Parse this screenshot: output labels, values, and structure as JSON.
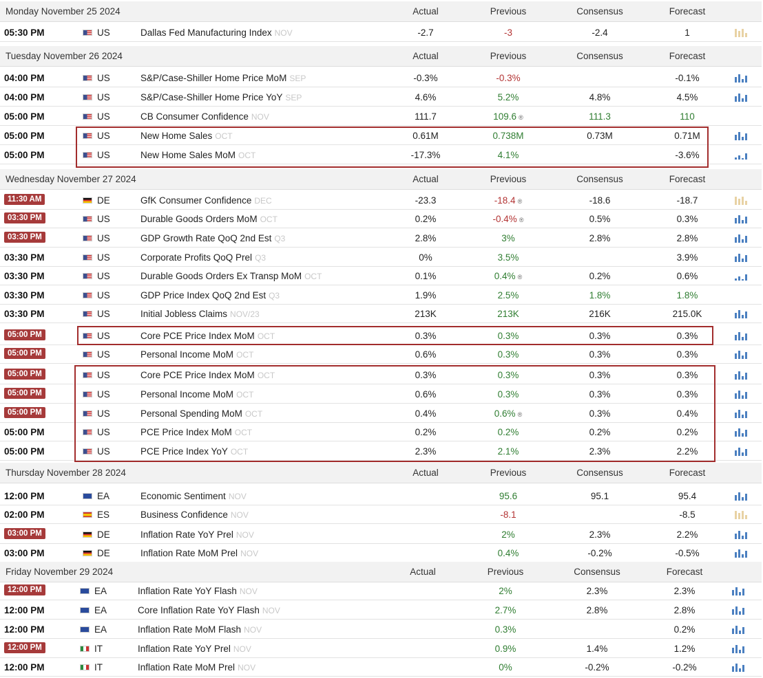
{
  "columns": {
    "actual": "Actual",
    "previous": "Previous",
    "consensus": "Consensus",
    "forecast": "Forecast"
  },
  "sections": [
    {
      "date": "Monday November 25 2024",
      "rows": [
        {
          "time": "05:30 PM",
          "badge": false,
          "flag": "US",
          "country": "US",
          "event": "Dallas Fed Manufacturing Index",
          "period": "NOV",
          "actual": "-2.7",
          "previous": "-3",
          "previous_color": "red",
          "consensus": "-2.4",
          "forecast": "1",
          "spark": "tan"
        }
      ]
    },
    {
      "date": "Tuesday November 26 2024",
      "rows": [
        {
          "time": "04:00 PM",
          "badge": false,
          "flag": "US",
          "country": "US",
          "event": "S&P/Case-Shiller Home Price MoM",
          "period": "SEP",
          "actual": "-0.3%",
          "previous": "-0.3%",
          "previous_color": "red",
          "consensus": "",
          "forecast": "-0.1%",
          "spark": "blue"
        },
        {
          "time": "04:00 PM",
          "badge": false,
          "flag": "US",
          "country": "US",
          "event": "S&P/Case-Shiller Home Price YoY",
          "period": "SEP",
          "actual": "4.6%",
          "previous": "5.2%",
          "previous_color": "green",
          "consensus": "4.8%",
          "forecast": "4.5%",
          "spark": "blue"
        },
        {
          "time": "05:00 PM",
          "badge": false,
          "flag": "US",
          "country": "US",
          "event": "CB Consumer Confidence",
          "period": "NOV",
          "actual": "111.7",
          "previous": "109.6",
          "previous_color": "green",
          "revised": true,
          "consensus": "111.3",
          "consensus_color": "green",
          "forecast": "110",
          "forecast_color": "green",
          "spark": "none"
        },
        {
          "time": "05:00 PM",
          "badge": false,
          "flag": "US",
          "country": "US",
          "event": "New Home Sales",
          "period": "OCT",
          "actual": "0.61M",
          "previous": "0.738M",
          "previous_color": "green",
          "consensus": "0.73M",
          "forecast": "0.71M",
          "spark": "blue"
        },
        {
          "time": "05:00 PM",
          "badge": false,
          "flag": "US",
          "country": "US",
          "event": "New Home Sales MoM",
          "period": "OCT",
          "actual": "-17.3%",
          "previous": "4.1%",
          "previous_color": "green",
          "consensus": "",
          "forecast": "-3.6%",
          "spark": "mixed"
        }
      ]
    },
    {
      "date": "Wednesday November 27 2024",
      "rows": [
        {
          "time": "11:30 AM",
          "badge": true,
          "flag": "DE",
          "country": "DE",
          "event": "GfK Consumer Confidence",
          "period": "DEC",
          "actual": "-23.3",
          "previous": "-18.4",
          "previous_color": "red",
          "revised": true,
          "consensus": "-18.6",
          "forecast": "-18.7",
          "spark": "tan"
        },
        {
          "time": "03:30 PM",
          "badge": true,
          "flag": "US",
          "country": "US",
          "event": "Durable Goods Orders MoM",
          "period": "OCT",
          "actual": "0.2%",
          "previous": "-0.4%",
          "previous_color": "red",
          "revised": true,
          "consensus": "0.5%",
          "forecast": "0.3%",
          "spark": "blue"
        },
        {
          "time": "03:30 PM",
          "badge": true,
          "flag": "US",
          "country": "US",
          "event": "GDP Growth Rate QoQ 2nd Est",
          "period": "Q3",
          "actual": "2.8%",
          "previous": "3%",
          "previous_color": "green",
          "consensus": "2.8%",
          "forecast": "2.8%",
          "spark": "blue"
        },
        {
          "time": "03:30 PM",
          "badge": false,
          "flag": "US",
          "country": "US",
          "event": "Corporate Profits QoQ Prel",
          "period": "Q3",
          "actual": "0%",
          "previous": "3.5%",
          "previous_color": "green",
          "consensus": "",
          "forecast": "3.9%",
          "spark": "blue"
        },
        {
          "time": "03:30 PM",
          "badge": false,
          "flag": "US",
          "country": "US",
          "event": "Durable Goods Orders Ex Transp MoM",
          "period": "OCT",
          "actual": "0.1%",
          "previous": "0.4%",
          "previous_color": "green",
          "revised": true,
          "consensus": "0.2%",
          "forecast": "0.6%",
          "spark": "mixed"
        },
        {
          "time": "03:30 PM",
          "badge": false,
          "flag": "US",
          "country": "US",
          "event": "GDP Price Index QoQ 2nd Est",
          "period": "Q3",
          "actual": "1.9%",
          "previous": "2.5%",
          "previous_color": "green",
          "consensus": "1.8%",
          "consensus_color": "green",
          "forecast": "1.8%",
          "forecast_color": "green",
          "spark": "none"
        },
        {
          "time": "03:30 PM",
          "badge": false,
          "flag": "US",
          "country": "US",
          "event": "Initial Jobless Claims",
          "period": "NOV/23",
          "actual": "213K",
          "previous": "213K",
          "previous_color": "green",
          "consensus": "216K",
          "forecast": "215.0K",
          "spark": "blue"
        },
        {
          "time": "05:00 PM",
          "badge": true,
          "flag": "US",
          "country": "US",
          "event": "Core PCE Price Index MoM",
          "period": "OCT",
          "actual": "0.3%",
          "previous": "0.3%",
          "previous_color": "green",
          "consensus": "0.3%",
          "forecast": "0.3%",
          "spark": "blue"
        },
        {
          "time": "05:00 PM",
          "badge": true,
          "flag": "US",
          "country": "US",
          "event": "Personal Income MoM",
          "period": "OCT",
          "actual": "0.6%",
          "previous": "0.3%",
          "previous_color": "green",
          "consensus": "0.3%",
          "forecast": "0.3%",
          "spark": "blue"
        },
        {
          "time": "05:00 PM",
          "badge": true,
          "flag": "US",
          "country": "US",
          "event": "Core PCE Price Index MoM",
          "period": "OCT",
          "actual": "0.3%",
          "previous": "0.3%",
          "previous_color": "green",
          "consensus": "0.3%",
          "forecast": "0.3%",
          "spark": "blue"
        },
        {
          "time": "05:00 PM",
          "badge": true,
          "flag": "US",
          "country": "US",
          "event": "Personal Income MoM",
          "period": "OCT",
          "actual": "0.6%",
          "previous": "0.3%",
          "previous_color": "green",
          "consensus": "0.3%",
          "forecast": "0.3%",
          "spark": "blue"
        },
        {
          "time": "05:00 PM",
          "badge": true,
          "flag": "US",
          "country": "US",
          "event": "Personal Spending MoM",
          "period": "OCT",
          "actual": "0.4%",
          "previous": "0.6%",
          "previous_color": "green",
          "revised": true,
          "consensus": "0.3%",
          "forecast": "0.4%",
          "spark": "blue"
        },
        {
          "time": "05:00 PM",
          "badge": false,
          "flag": "US",
          "country": "US",
          "event": "PCE Price Index MoM",
          "period": "OCT",
          "actual": "0.2%",
          "previous": "0.2%",
          "previous_color": "green",
          "consensus": "0.2%",
          "forecast": "0.2%",
          "spark": "blue"
        },
        {
          "time": "05:00 PM",
          "badge": false,
          "flag": "US",
          "country": "US",
          "event": "PCE Price Index YoY",
          "period": "OCT",
          "actual": "2.3%",
          "previous": "2.1%",
          "previous_color": "green",
          "consensus": "2.3%",
          "forecast": "2.2%",
          "spark": "blue"
        }
      ]
    },
    {
      "date": "Thursday November 28 2024",
      "rows": [
        {
          "time": "12:00 PM",
          "badge": false,
          "flag": "EA",
          "country": "EA",
          "event": "Economic Sentiment",
          "period": "NOV",
          "actual": "",
          "previous": "95.6",
          "previous_color": "green",
          "consensus": "95.1",
          "forecast": "95.4",
          "spark": "blue"
        },
        {
          "time": "02:00 PM",
          "badge": false,
          "flag": "ES",
          "country": "ES",
          "event": "Business Confidence",
          "period": "NOV",
          "actual": "",
          "previous": "-8.1",
          "previous_color": "red",
          "consensus": "",
          "forecast": "-8.5",
          "spark": "tan"
        },
        {
          "time": "03:00 PM",
          "badge": true,
          "flag": "DE",
          "country": "DE",
          "event": "Inflation Rate YoY Prel",
          "period": "NOV",
          "actual": "",
          "previous": "2%",
          "previous_color": "green",
          "consensus": "2.3%",
          "forecast": "2.2%",
          "spark": "blue"
        },
        {
          "time": "03:00 PM",
          "badge": false,
          "flag": "DE",
          "country": "DE",
          "event": "Inflation Rate MoM Prel",
          "period": "NOV",
          "actual": "",
          "previous": "0.4%",
          "previous_color": "green",
          "consensus": "-0.2%",
          "forecast": "-0.5%",
          "spark": "blue"
        }
      ]
    },
    {
      "date": "Friday November 29 2024",
      "rows": [
        {
          "time": "12:00 PM",
          "badge": true,
          "flag": "EA",
          "country": "EA",
          "event": "Inflation Rate YoY Flash",
          "period": "NOV",
          "actual": "",
          "previous": "2%",
          "previous_color": "green",
          "consensus": "2.3%",
          "forecast": "2.3%",
          "spark": "blue"
        },
        {
          "time": "12:00 PM",
          "badge": false,
          "flag": "EA",
          "country": "EA",
          "event": "Core Inflation Rate YoY Flash",
          "period": "NOV",
          "actual": "",
          "previous": "2.7%",
          "previous_color": "green",
          "consensus": "2.8%",
          "forecast": "2.8%",
          "spark": "blue"
        },
        {
          "time": "12:00 PM",
          "badge": false,
          "flag": "EA",
          "country": "EA",
          "event": "Inflation Rate MoM Flash",
          "period": "NOV",
          "actual": "",
          "previous": "0.3%",
          "previous_color": "green",
          "consensus": "",
          "forecast": "0.2%",
          "spark": "blue"
        },
        {
          "time": "12:00 PM",
          "badge": true,
          "flag": "IT",
          "country": "IT",
          "event": "Inflation Rate YoY Prel",
          "period": "NOV",
          "actual": "",
          "previous": "0.9%",
          "previous_color": "green",
          "consensus": "1.4%",
          "forecast": "1.2%",
          "spark": "blue"
        },
        {
          "time": "12:00 PM",
          "badge": false,
          "flag": "IT",
          "country": "IT",
          "event": "Inflation Rate MoM Prel",
          "period": "NOV",
          "actual": "",
          "previous": "0%",
          "previous_color": "green",
          "consensus": "-0.2%",
          "forecast": "-0.2%",
          "spark": "blue"
        }
      ]
    }
  ]
}
